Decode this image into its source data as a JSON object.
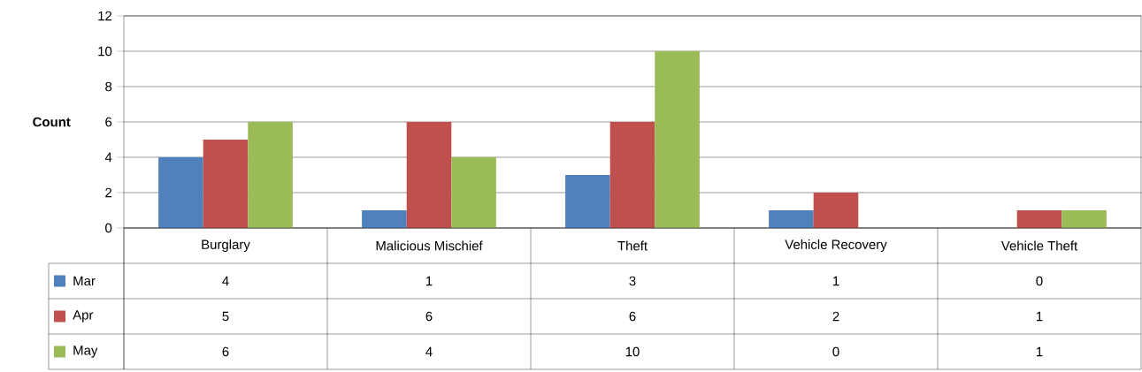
{
  "chart_data": {
    "type": "bar",
    "ylabel": "Count",
    "categories": [
      "Burglary",
      "Malicious Mischief",
      "Theft",
      "Vehicle Recovery",
      "Vehicle Theft"
    ],
    "series": [
      {
        "name": "Mar",
        "color": "#4f81bd",
        "values": [
          4,
          1,
          3,
          1,
          0
        ]
      },
      {
        "name": "Apr",
        "color": "#c0504d",
        "values": [
          5,
          6,
          6,
          2,
          1
        ]
      },
      {
        "name": "May",
        "color": "#9bbb59",
        "values": [
          6,
          4,
          10,
          0,
          1
        ]
      }
    ],
    "ylim": [
      0,
      12
    ],
    "yticks": [
      0,
      2,
      4,
      6,
      8,
      10,
      12
    ],
    "grid": "y",
    "legend": "bottom",
    "data_labels": true
  }
}
